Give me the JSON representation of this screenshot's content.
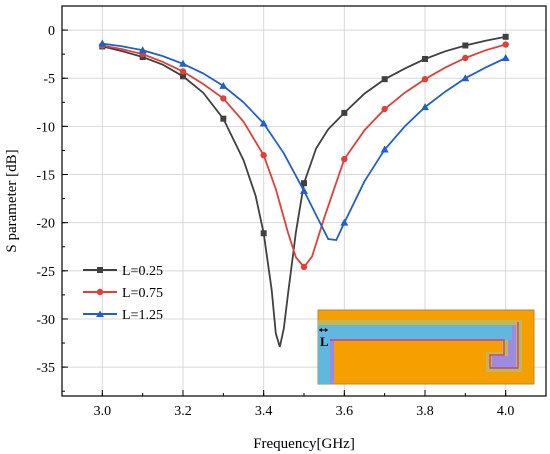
{
  "chart_data": {
    "type": "line",
    "title": "",
    "xlabel": "Frequency[GHz]",
    "ylabel": "S parameter [dB]",
    "xlim": [
      2.9,
      4.1
    ],
    "ylim": [
      -38,
      2.5
    ],
    "xticks": [
      "3.0",
      "3.2",
      "3.4",
      "3.6",
      "3.8",
      "4.0"
    ],
    "yticks": [
      "0",
      "-5",
      "-10",
      "-15",
      "-20",
      "-25",
      "-30",
      "-35"
    ],
    "grid": true,
    "legend_position": "bottom-left",
    "series": [
      {
        "name": "L=0.25",
        "color": "#404040",
        "marker": "square",
        "markers": [
          [
            3.0,
            -1.7
          ],
          [
            3.1,
            -2.8
          ],
          [
            3.2,
            -4.8
          ],
          [
            3.3,
            -9.2
          ],
          [
            3.4,
            -21.1
          ],
          [
            3.5,
            -15.9
          ],
          [
            3.6,
            -8.6
          ],
          [
            3.7,
            -5.1
          ],
          [
            3.8,
            -3.0
          ],
          [
            3.9,
            -1.6
          ],
          [
            4.0,
            -0.7
          ]
        ],
        "curve": [
          [
            3.0,
            -1.7
          ],
          [
            3.05,
            -2.2
          ],
          [
            3.1,
            -2.8
          ],
          [
            3.15,
            -3.6
          ],
          [
            3.2,
            -4.8
          ],
          [
            3.25,
            -6.5
          ],
          [
            3.3,
            -9.2
          ],
          [
            3.35,
            -13.5
          ],
          [
            3.38,
            -17.2
          ],
          [
            3.4,
            -21.1
          ],
          [
            3.42,
            -27.0
          ],
          [
            3.43,
            -31.5
          ],
          [
            3.44,
            -32.9
          ],
          [
            3.45,
            -31.0
          ],
          [
            3.46,
            -27.5
          ],
          [
            3.48,
            -21.0
          ],
          [
            3.5,
            -15.9
          ],
          [
            3.53,
            -12.3
          ],
          [
            3.56,
            -10.3
          ],
          [
            3.6,
            -8.6
          ],
          [
            3.65,
            -6.6
          ],
          [
            3.7,
            -5.1
          ],
          [
            3.75,
            -4.0
          ],
          [
            3.8,
            -3.0
          ],
          [
            3.85,
            -2.2
          ],
          [
            3.9,
            -1.6
          ],
          [
            3.95,
            -1.1
          ],
          [
            4.0,
            -0.7
          ]
        ]
      },
      {
        "name": "L=0.75",
        "color": "#e0403a",
        "marker": "circle",
        "markers": [
          [
            3.0,
            -1.6
          ],
          [
            3.1,
            -2.5
          ],
          [
            3.2,
            -4.3
          ],
          [
            3.3,
            -7.1
          ],
          [
            3.4,
            -13.0
          ],
          [
            3.5,
            -24.6
          ],
          [
            3.6,
            -13.4
          ],
          [
            3.7,
            -8.2
          ],
          [
            3.8,
            -5.1
          ],
          [
            3.9,
            -2.9
          ],
          [
            4.0,
            -1.5
          ]
        ],
        "curve": [
          [
            3.0,
            -1.6
          ],
          [
            3.05,
            -2.0
          ],
          [
            3.1,
            -2.5
          ],
          [
            3.15,
            -3.3
          ],
          [
            3.2,
            -4.3
          ],
          [
            3.25,
            -5.6
          ],
          [
            3.3,
            -7.1
          ],
          [
            3.35,
            -9.5
          ],
          [
            3.4,
            -13.0
          ],
          [
            3.43,
            -16.5
          ],
          [
            3.46,
            -21.0
          ],
          [
            3.48,
            -23.6
          ],
          [
            3.5,
            -24.6
          ],
          [
            3.52,
            -23.5
          ],
          [
            3.55,
            -19.5
          ],
          [
            3.6,
            -13.4
          ],
          [
            3.65,
            -10.4
          ],
          [
            3.7,
            -8.2
          ],
          [
            3.75,
            -6.5
          ],
          [
            3.8,
            -5.1
          ],
          [
            3.85,
            -3.9
          ],
          [
            3.9,
            -2.9
          ],
          [
            3.95,
            -2.1
          ],
          [
            4.0,
            -1.5
          ]
        ]
      },
      {
        "name": "L=1.25",
        "color": "#2060c8",
        "marker": "triangle",
        "markers": [
          [
            3.0,
            -1.4
          ],
          [
            3.1,
            -2.1
          ],
          [
            3.2,
            -3.5
          ],
          [
            3.3,
            -5.8
          ],
          [
            3.4,
            -9.7
          ],
          [
            3.5,
            -16.7
          ],
          [
            3.6,
            -20.0
          ],
          [
            3.7,
            -12.4
          ],
          [
            3.8,
            -8.0
          ],
          [
            3.9,
            -5.0
          ],
          [
            4.0,
            -2.9
          ]
        ],
        "curve": [
          [
            3.0,
            -1.4
          ],
          [
            3.05,
            -1.7
          ],
          [
            3.1,
            -2.1
          ],
          [
            3.15,
            -2.7
          ],
          [
            3.2,
            -3.5
          ],
          [
            3.25,
            -4.5
          ],
          [
            3.3,
            -5.8
          ],
          [
            3.35,
            -7.5
          ],
          [
            3.4,
            -9.7
          ],
          [
            3.45,
            -12.8
          ],
          [
            3.5,
            -16.7
          ],
          [
            3.53,
            -19.2
          ],
          [
            3.56,
            -21.7
          ],
          [
            3.58,
            -21.8
          ],
          [
            3.6,
            -20.0
          ],
          [
            3.65,
            -15.7
          ],
          [
            3.7,
            -12.4
          ],
          [
            3.75,
            -10.0
          ],
          [
            3.8,
            -8.0
          ],
          [
            3.85,
            -6.4
          ],
          [
            3.9,
            -5.0
          ],
          [
            3.95,
            -3.9
          ],
          [
            4.0,
            -2.9
          ]
        ]
      }
    ],
    "inset": {
      "description_label": "L",
      "colors": {
        "background": "#f5a000",
        "outer": "#c0b858",
        "middle": "#9b8ce0",
        "inner": "#60b8e0",
        "edge": "#d23c8c",
        "fill": "#ffa600"
      }
    }
  }
}
